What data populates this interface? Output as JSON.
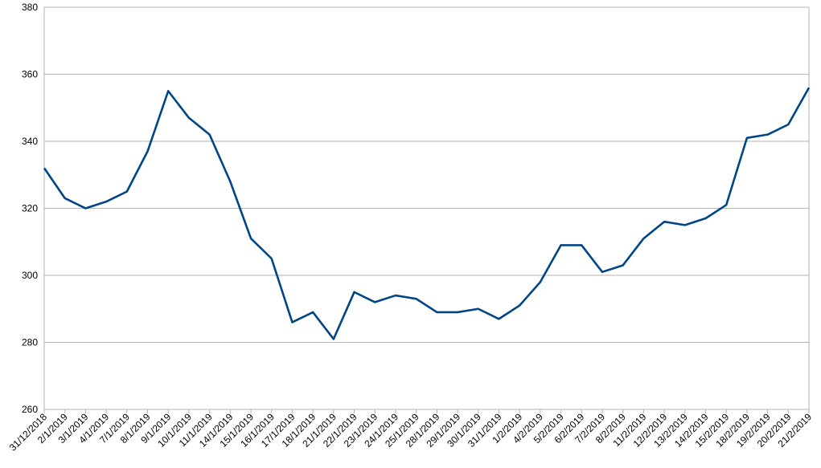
{
  "chart_data": {
    "type": "line",
    "categories": [
      "31/12/2018",
      "2/1/2019",
      "3/1/2019",
      "4/1/2019",
      "7/1/2019",
      "8/1/2019",
      "9/1/2019",
      "10/1/2019",
      "11/1/2019",
      "14/1/2019",
      "15/1/2019",
      "16/1/2019",
      "17/1/2019",
      "18/1/2019",
      "21/1/2019",
      "22/1/2019",
      "23/1/2019",
      "24/1/2019",
      "25/1/2019",
      "28/1/2019",
      "29/1/2019",
      "30/1/2019",
      "31/1/2019",
      "1/2/2019",
      "4/2/2019",
      "5/2/2019",
      "6/2/2019",
      "7/2/2019",
      "8/2/2019",
      "11/2/2019",
      "12/2/2019",
      "13/2/2019",
      "14/2/2019",
      "15/2/2019",
      "18/2/2019",
      "19/2/2019",
      "20/2/2019",
      "21/2/2019"
    ],
    "values": [
      332,
      323,
      320,
      322,
      325,
      337,
      355,
      347,
      342,
      328,
      311,
      305,
      286,
      289,
      281,
      295,
      292,
      294,
      293,
      289,
      289,
      290,
      287,
      291,
      298,
      309,
      309,
      301,
      303,
      311,
      316,
      315,
      317,
      321,
      341,
      342,
      345,
      356
    ],
    "color": "#004586",
    "ylim": [
      260,
      380
    ],
    "yticks": [
      260,
      280,
      300,
      320,
      340,
      360,
      380
    ],
    "grid": true
  }
}
